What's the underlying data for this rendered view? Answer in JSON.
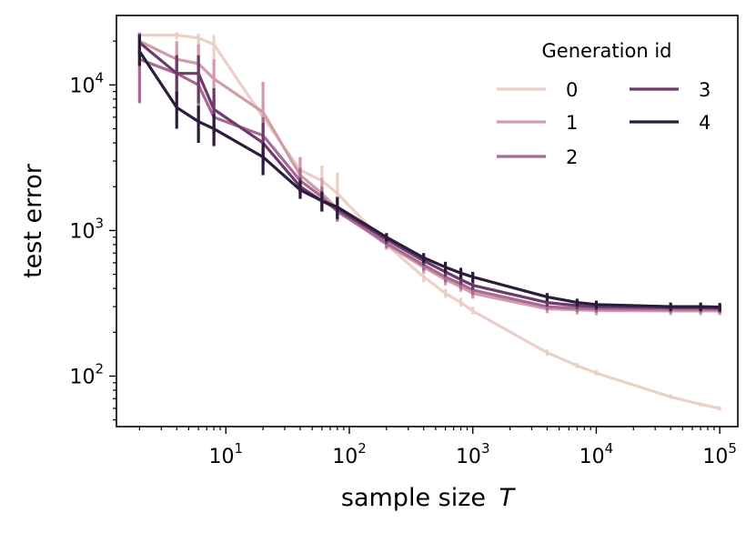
{
  "chart_data": {
    "type": "line",
    "xscale": "log",
    "yscale": "log",
    "xlabel": "sample size",
    "xlabel_var": "T",
    "ylabel": "test error",
    "xlim": [
      1.3,
      140000
    ],
    "ylim": [
      45,
      30000
    ],
    "xticks": [
      {
        "value": 10,
        "base": "10",
        "exp": "1"
      },
      {
        "value": 100,
        "base": "10",
        "exp": "2"
      },
      {
        "value": 1000,
        "base": "10",
        "exp": "3"
      },
      {
        "value": 10000,
        "base": "10",
        "exp": "4"
      },
      {
        "value": 100000,
        "base": "10",
        "exp": "5"
      }
    ],
    "yticks": [
      {
        "value": 100,
        "base": "10",
        "exp": "2"
      },
      {
        "value": 1000,
        "base": "10",
        "exp": "3"
      },
      {
        "value": 10000,
        "base": "10",
        "exp": "4"
      }
    ],
    "legend": {
      "title": "Generation id",
      "position": "top-right",
      "columns": 2
    },
    "x": [
      2,
      4,
      6,
      8,
      20,
      40,
      60,
      80,
      200,
      400,
      600,
      800,
      1000,
      4000,
      7000,
      10000,
      40000,
      70000,
      100000
    ],
    "series": [
      {
        "name": "0",
        "color": "#ebd0c8",
        "values": [
          22000,
          22000,
          21000,
          19000,
          6000,
          2600,
          2200,
          1800,
          800,
          480,
          370,
          320,
          280,
          145,
          118,
          105,
          72,
          64,
          60
        ],
        "err_low": [
          20500,
          20500,
          18000,
          13000,
          4000,
          2100,
          1700,
          1300,
          740,
          440,
          345,
          300,
          265,
          138,
          113,
          101,
          70,
          62,
          58
        ],
        "err_high": [
          23000,
          23000,
          22500,
          22000,
          7500,
          3100,
          2800,
          2500,
          860,
          520,
          395,
          345,
          300,
          152,
          123,
          110,
          75,
          66,
          62
        ]
      },
      {
        "name": "1",
        "color": "#d09ca8",
        "values": [
          20000,
          15000,
          14000,
          11000,
          6500,
          2400,
          1800,
          1400,
          800,
          560,
          460,
          410,
          370,
          290,
          285,
          282,
          280,
          280,
          280
        ],
        "err_low": [
          12000,
          10000,
          9500,
          7000,
          4200,
          1900,
          1500,
          1200,
          740,
          510,
          420,
          380,
          340,
          270,
          265,
          262,
          262,
          262,
          262
        ],
        "err_high": [
          23000,
          20000,
          19000,
          15000,
          10500,
          3200,
          2300,
          1700,
          860,
          610,
          500,
          445,
          400,
          310,
          305,
          302,
          300,
          300,
          300
        ]
      },
      {
        "name": "2",
        "color": "#a86a90",
        "values": [
          15000,
          12000,
          10000,
          6000,
          4500,
          2200,
          1700,
          1350,
          820,
          580,
          480,
          430,
          390,
          300,
          292,
          290,
          288,
          288,
          288
        ],
        "err_low": [
          7500,
          8000,
          6500,
          4000,
          3200,
          1800,
          1400,
          1150,
          760,
          530,
          440,
          395,
          360,
          282,
          275,
          272,
          270,
          270,
          270
        ],
        "err_high": [
          19500,
          16000,
          14000,
          8500,
          6000,
          2700,
          2000,
          1550,
          880,
          630,
          520,
          465,
          420,
          318,
          310,
          308,
          306,
          306,
          306
        ]
      },
      {
        "name": "3",
        "color": "#6b3b6a",
        "values": [
          19500,
          12000,
          12000,
          6800,
          4000,
          2000,
          1600,
          1400,
          870,
          620,
          520,
          460,
          420,
          320,
          305,
          300,
          295,
          295,
          292
        ],
        "err_low": [
          16000,
          8500,
          7500,
          4500,
          2800,
          1700,
          1350,
          1200,
          810,
          575,
          480,
          425,
          390,
          300,
          288,
          283,
          278,
          278,
          275
        ],
        "err_high": [
          22500,
          16000,
          16000,
          9500,
          5500,
          2300,
          1850,
          1600,
          930,
          665,
          560,
          495,
          450,
          340,
          322,
          318,
          312,
          312,
          310
        ]
      },
      {
        "name": "4",
        "color": "#2c1c3a",
        "values": [
          17000,
          7000,
          5600,
          5000,
          3200,
          1900,
          1600,
          1450,
          900,
          650,
          560,
          510,
          480,
          350,
          320,
          310,
          300,
          300,
          298
        ],
        "err_low": [
          13500,
          5000,
          4000,
          3800,
          2400,
          1650,
          1350,
          1200,
          840,
          600,
          510,
          465,
          440,
          328,
          300,
          290,
          280,
          280,
          278
        ],
        "err_high": [
          22000,
          9000,
          7200,
          6300,
          4000,
          2200,
          1850,
          1700,
          960,
          700,
          610,
          555,
          520,
          372,
          340,
          330,
          320,
          320,
          318
        ]
      }
    ]
  }
}
